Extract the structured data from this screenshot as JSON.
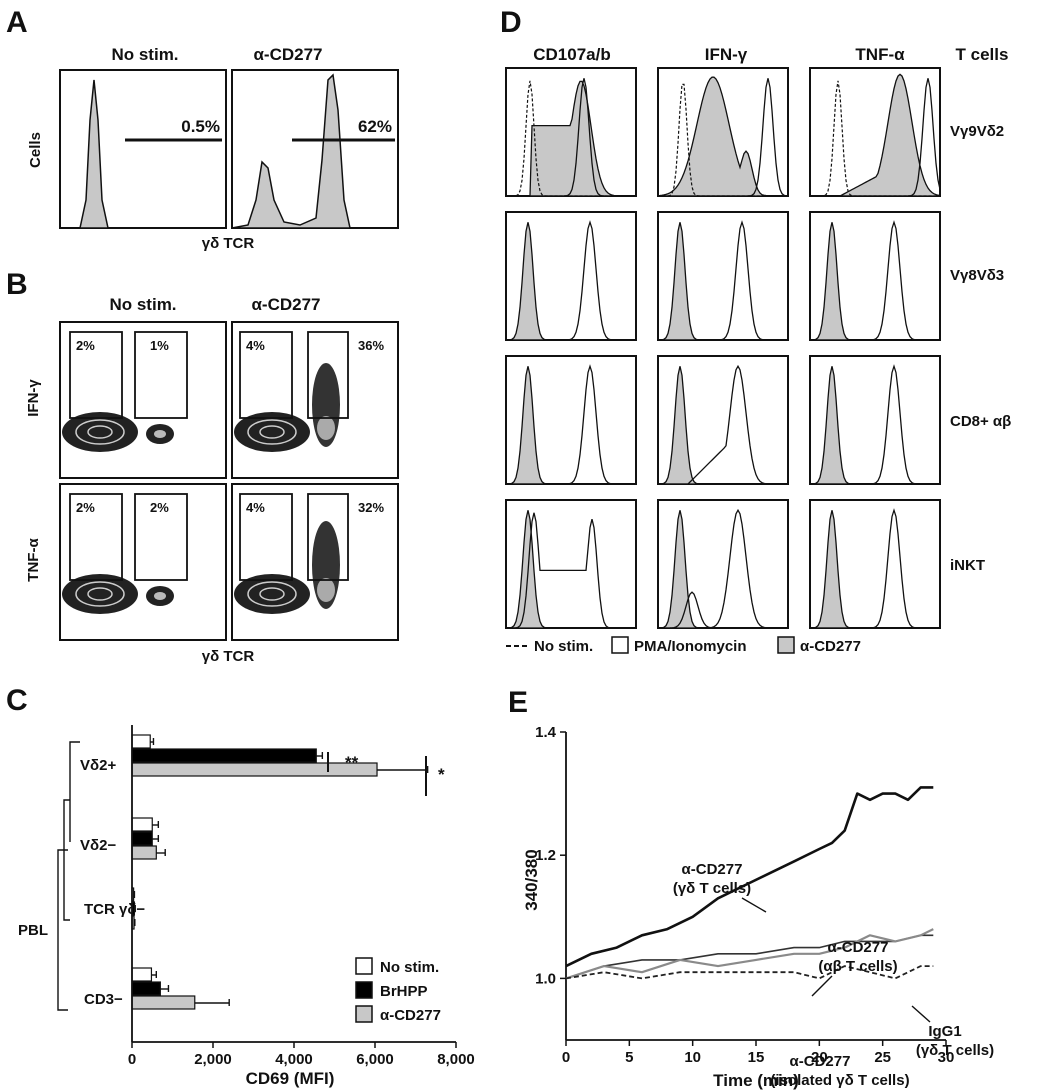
{
  "panels": {
    "A": {
      "letter": "A",
      "col_titles": [
        "No stim.",
        "α-CD277"
      ],
      "y_label": "Cells",
      "x_label": "γδ TCR",
      "percents": [
        "0.5%",
        "62%"
      ]
    },
    "B": {
      "letter": "B",
      "col_titles": [
        "No stim.",
        "α-CD277"
      ],
      "row_labels": [
        "IFN-γ",
        "TNF-α"
      ],
      "x_label": "γδ TCR",
      "gates": [
        [
          "2%",
          "1%",
          "4%",
          "36%"
        ],
        [
          "2%",
          "2%",
          "4%",
          "32%"
        ]
      ]
    },
    "C": {
      "letter": "C",
      "x_label": "CD69 (MFI)",
      "group_label": "PBL",
      "row_labels": [
        "Vδ2+",
        "Vδ2−",
        "TCR γδ−",
        "CD3−"
      ],
      "sig_marks": [
        "**",
        "*"
      ],
      "legend": [
        "No stim.",
        "BrHPP",
        "α-CD277"
      ]
    },
    "D": {
      "letter": "D",
      "col_titles": [
        "CD107a/b",
        "IFN-γ",
        "TNF-α"
      ],
      "row_header": "T cells",
      "row_labels": [
        "Vγ9Vδ2",
        "Vγ8Vδ3",
        "CD8+ αβ",
        "iNKT"
      ],
      "legend": [
        "No stim.",
        "PMA/Ionomycin",
        "α-CD277"
      ]
    },
    "E": {
      "letter": "E",
      "y_label": "340/380",
      "x_label": "Time (min)",
      "annotations": [
        "α-CD277",
        "(γδ T cells)",
        "α-CD277",
        "(αβ T cells)",
        "IgG1",
        "(γδ T cells)",
        "α-CD277",
        "(isolated γδ T cells)"
      ]
    }
  },
  "chart_data": [
    {
      "type": "bar",
      "orientation": "horizontal",
      "categories": [
        "Vδ2+",
        "Vδ2−",
        "TCR γδ−",
        "CD3−"
      ],
      "series": [
        {
          "name": "No stim.",
          "values": [
            450,
            500,
            40,
            480
          ],
          "errors": [
            80,
            150,
            20,
            120
          ],
          "color": "#ffffff"
        },
        {
          "name": "BrHPP",
          "values": [
            4550,
            500,
            60,
            700
          ],
          "errors": [
            150,
            150,
            20,
            200
          ],
          "color": "#000000"
        },
        {
          "name": "α-CD277",
          "values": [
            6050,
            600,
            50,
            1550
          ],
          "errors": [
            1250,
            220,
            20,
            850
          ],
          "color": "#c8c8c8"
        }
      ],
      "xlabel": "CD69 (MFI)",
      "xlim": [
        0,
        8000
      ],
      "xticks": [
        "0",
        "2,000",
        "4,000",
        "6,000",
        "8,000"
      ]
    },
    {
      "type": "line",
      "xlabel": "Time (min)",
      "ylabel": "340/380",
      "xlim": [
        0,
        30
      ],
      "ylim": [
        0.9,
        1.4
      ],
      "xticks": [
        "0",
        "5",
        "10",
        "15",
        "20",
        "25",
        "30"
      ],
      "yticks": [
        "1.0",
        "1.2",
        "1.4"
      ],
      "series": [
        {
          "x": [
            0,
            2,
            4,
            6,
            8,
            10,
            12,
            14,
            16,
            18,
            20,
            21,
            22,
            23,
            24,
            25,
            26,
            27,
            28,
            29
          ],
          "y": [
            1.02,
            1.04,
            1.05,
            1.07,
            1.08,
            1.1,
            1.13,
            1.15,
            1.17,
            1.19,
            1.21,
            1.22,
            1.24,
            1.3,
            1.29,
            1.3,
            1.3,
            1.29,
            1.31,
            1.31
          ],
          "color": "#111111",
          "dash": "",
          "width": 2.6
        },
        {
          "x": [
            0,
            3,
            6,
            9,
            12,
            15,
            18,
            20,
            22,
            24,
            26,
            28,
            29
          ],
          "y": [
            1.0,
            1.02,
            1.03,
            1.03,
            1.04,
            1.04,
            1.05,
            1.05,
            1.06,
            1.06,
            1.06,
            1.07,
            1.07
          ],
          "color": "#333333",
          "dash": "",
          "width": 1.6
        },
        {
          "x": [
            0,
            3,
            6,
            9,
            12,
            15,
            18,
            20,
            22,
            24,
            26,
            28,
            29
          ],
          "y": [
            1.0,
            1.02,
            1.01,
            1.03,
            1.02,
            1.03,
            1.04,
            1.04,
            1.05,
            1.07,
            1.06,
            1.07,
            1.08
          ],
          "color": "#8a8a8a",
          "dash": "",
          "width": 2.2
        },
        {
          "x": [
            0,
            3,
            6,
            9,
            12,
            15,
            18,
            20,
            22,
            24,
            26,
            28,
            29
          ],
          "y": [
            1.0,
            1.01,
            1.0,
            1.01,
            1.01,
            1.01,
            1.01,
            1.0,
            1.02,
            1.01,
            1.0,
            1.02,
            1.02
          ],
          "color": "#222222",
          "dash": "5,3",
          "width": 1.8
        }
      ]
    }
  ]
}
